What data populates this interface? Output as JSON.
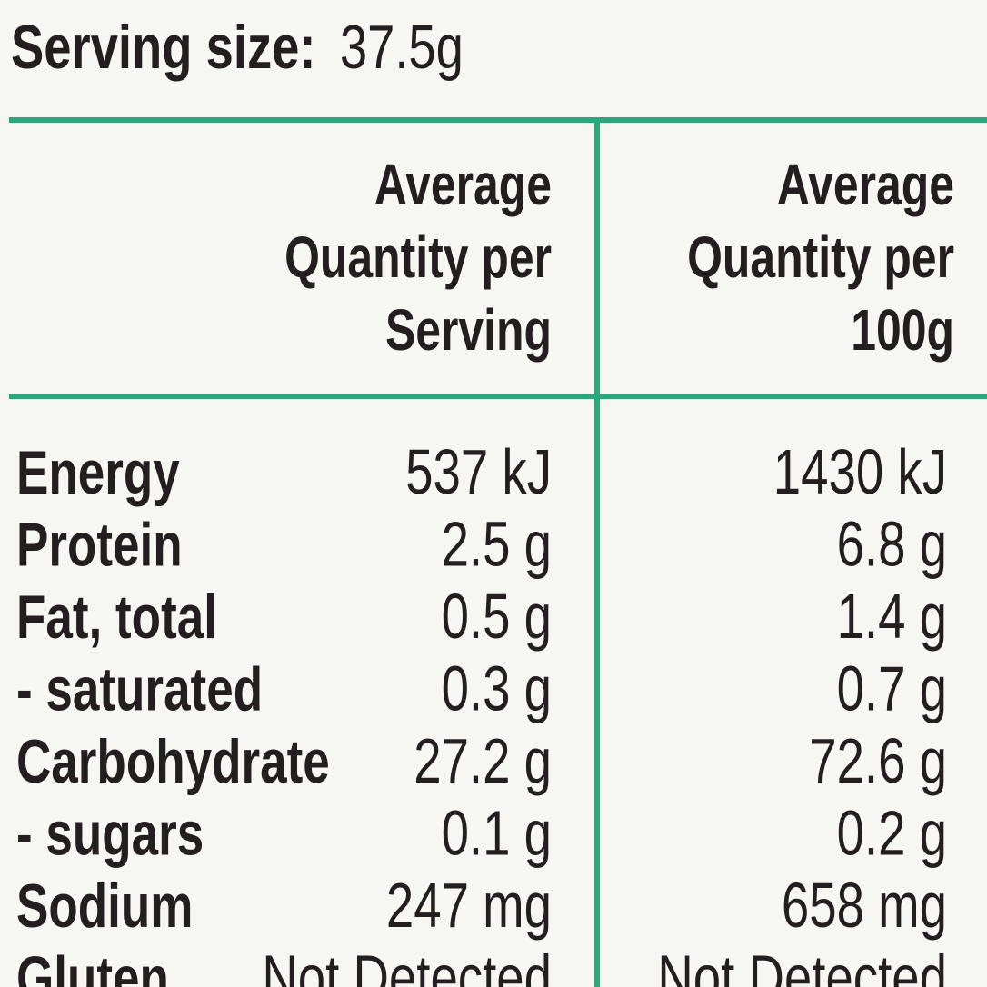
{
  "serving_size": {
    "label": "Serving size:",
    "value": "37.5g"
  },
  "table": {
    "header": [
      [
        "Average",
        "Quantity per",
        "Serving"
      ],
      [
        "Average",
        "Quantity per",
        "100g"
      ]
    ],
    "rows": [
      [
        "Energy",
        "537 kJ",
        "1430 kJ"
      ],
      [
        "Protein",
        "2.5 g",
        "6.8 g"
      ],
      [
        "Fat, total",
        "0.5 g",
        "1.4 g"
      ],
      [
        "- saturated",
        "0.3 g",
        "0.7 g"
      ],
      [
        "Carbohydrate",
        "27.2 g",
        "72.6 g"
      ],
      [
        "- sugars",
        "0.1 g",
        "0.2 g"
      ],
      [
        "Sodium",
        "247 mg",
        "658 mg"
      ],
      [
        "Gluten",
        "Not Detected",
        "Not Detected"
      ]
    ]
  }
}
